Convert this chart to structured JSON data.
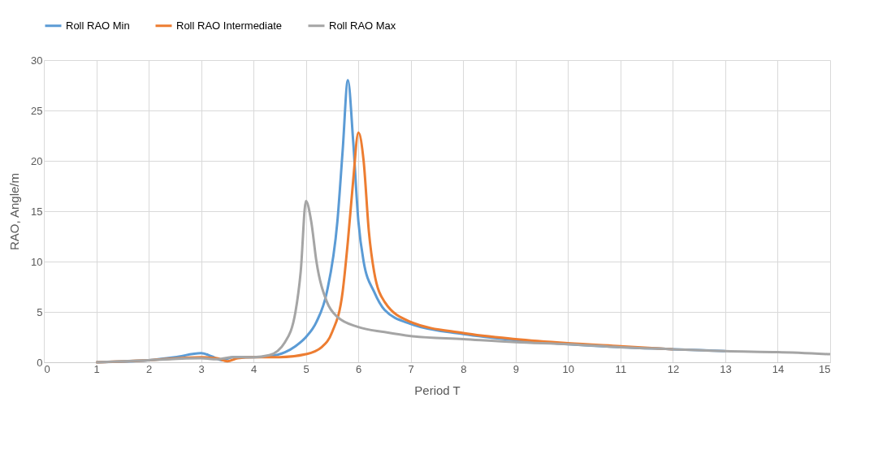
{
  "chart_data": {
    "type": "line",
    "xlabel": "Period T",
    "ylabel": "RAO, Angle/m",
    "xlim": [
      0,
      15
    ],
    "xticks": [
      0,
      1,
      2,
      3,
      4,
      5,
      6,
      7,
      8,
      9,
      10,
      11,
      12,
      13,
      14,
      15
    ],
    "ylim": [
      0,
      30
    ],
    "yticks": [
      0,
      5,
      10,
      15,
      20,
      25,
      30
    ],
    "grid": true,
    "legend": "top",
    "marker": "none",
    "line_style": "solid",
    "series": [
      {
        "name": "Roll RAO Min",
        "color": "#5b9bd5",
        "x": [
          1,
          2,
          2.5,
          3,
          3.2,
          3.4,
          3.6,
          4,
          4.3,
          4.6,
          4.8,
          5,
          5.2,
          5.4,
          5.6,
          5.7,
          5.8,
          5.9,
          6,
          6.1,
          6.3,
          6.5,
          7,
          8,
          9,
          10,
          11,
          12,
          13
        ],
        "values": [
          0,
          0.2,
          0.5,
          0.9,
          0.6,
          0.2,
          0.5,
          0.5,
          0.6,
          1,
          1.6,
          2.5,
          4,
          7,
          14,
          21,
          28,
          22,
          14,
          10,
          7,
          5.2,
          3.8,
          2.8,
          2.2,
          1.8,
          1.5,
          1.3,
          1.1
        ]
      },
      {
        "name": "Roll RAO Intermediate",
        "color": "#ed7d31",
        "x": [
          1,
          2,
          3,
          3.3,
          3.5,
          3.7,
          4,
          4.5,
          5,
          5.3,
          5.5,
          5.7,
          5.8,
          5.9,
          6,
          6.1,
          6.2,
          6.3,
          6.5,
          7,
          8,
          9,
          10,
          11,
          12
        ],
        "values": [
          0,
          0.2,
          0.5,
          0.4,
          0.1,
          0.4,
          0.5,
          0.5,
          0.8,
          1.5,
          3,
          7,
          12,
          18,
          22.8,
          20,
          13,
          9,
          6,
          4,
          2.9,
          2.3,
          1.9,
          1.6,
          1.3
        ]
      },
      {
        "name": "Roll RAO Max",
        "color": "#a5a5a5",
        "x": [
          1,
          2,
          3,
          3.3,
          3.6,
          4,
          4.3,
          4.6,
          4.8,
          4.9,
          5,
          5.1,
          5.2,
          5.4,
          5.6,
          6,
          6.5,
          7,
          8,
          9,
          10,
          11,
          12,
          13,
          14,
          15
        ],
        "values": [
          0,
          0.2,
          0.4,
          0.3,
          0.5,
          0.5,
          0.7,
          2,
          5,
          9,
          16,
          14,
          10,
          6,
          4.5,
          3.5,
          3,
          2.6,
          2.3,
          2,
          1.8,
          1.5,
          1.3,
          1.1,
          1,
          0.8
        ]
      }
    ]
  }
}
